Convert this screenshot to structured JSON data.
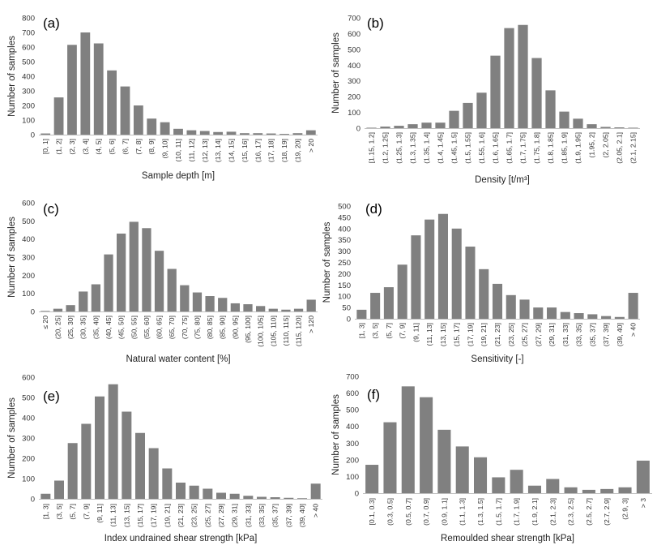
{
  "chart_data": [
    {
      "panel": "(a)",
      "type": "bar",
      "xlabel": "Sample depth [m]",
      "ylabel": "Number of samples",
      "ylim": [
        0,
        800
      ],
      "yticks": [
        0,
        100,
        200,
        300,
        400,
        500,
        600,
        700,
        800
      ],
      "categories": [
        "[0, 1]",
        "(1, 2]",
        "(2, 3]",
        "(3, 4]",
        "(4, 5]",
        "(5, 6]",
        "(6, 7]",
        "(7, 8]",
        "(8, 9]",
        "(9, 10]",
        "(10, 11]",
        "(11, 12]",
        "(12, 13]",
        "(13, 14]",
        "(14, 15]",
        "(15, 16]",
        "(16, 17]",
        "(17, 18]",
        "(18, 19]",
        "(19, 20]",
        "> 20"
      ],
      "values": [
        8,
        255,
        615,
        700,
        625,
        440,
        330,
        200,
        110,
        85,
        40,
        30,
        25,
        18,
        20,
        10,
        10,
        8,
        5,
        10,
        30
      ]
    },
    {
      "panel": "(b)",
      "type": "bar",
      "xlabel": "Density [t/m³]",
      "ylabel": "Number of samples",
      "ylim": [
        0,
        700
      ],
      "yticks": [
        0,
        100,
        200,
        300,
        400,
        500,
        600,
        700
      ],
      "categories": [
        "[1.15, 1.2]",
        "(1.2, 1.25]",
        "(1.25, 1.3]",
        "(1.3, 1.35]",
        "(1.35, 1.4]",
        "(1.4, 1.45]",
        "(1.45, 1.5]",
        "(1.5, 1.55]",
        "(1.55, 1.6]",
        "(1.6, 1.65]",
        "(1.65, 1.7]",
        "(1.7, 1.75]",
        "(1.75, 1.8]",
        "(1.8, 1.85]",
        "(1.85, 1.9]",
        "(1.9, 1.95]",
        "(1.95, 2]",
        "(2, 2.05]",
        "(2.05, 2.1]",
        "(2.1, 2.15]"
      ],
      "values": [
        3,
        10,
        15,
        25,
        35,
        35,
        110,
        160,
        225,
        460,
        635,
        655,
        445,
        240,
        105,
        60,
        25,
        8,
        5,
        3
      ]
    },
    {
      "panel": "(c)",
      "type": "bar",
      "xlabel": "Natural water content [%]",
      "ylabel": "Number of samples",
      "ylim": [
        0,
        600
      ],
      "yticks": [
        0,
        100,
        200,
        300,
        400,
        500,
        600
      ],
      "categories": [
        "≤ 20",
        "(20, 25]",
        "(25, 30]",
        "(30, 35]",
        "(35, 40]",
        "(40, 45]",
        "(45, 50]",
        "(50, 55]",
        "(55, 60]",
        "(60, 65]",
        "(65, 70]",
        "(70, 75]",
        "(75, 80]",
        "(80, 85]",
        "(85, 90]",
        "(90, 95]",
        "(95, 100]",
        "(100, 105]",
        "(105, 110]",
        "(110, 115]",
        "(115, 120]",
        "> 120"
      ],
      "values": [
        3,
        15,
        35,
        110,
        150,
        315,
        430,
        495,
        460,
        335,
        235,
        145,
        105,
        85,
        75,
        45,
        40,
        30,
        15,
        10,
        15,
        65
      ]
    },
    {
      "panel": "(d)",
      "type": "bar",
      "xlabel": "Sensitivity [-]",
      "ylabel": "Number of samples",
      "ylim": [
        0,
        500
      ],
      "yticks": [
        0,
        50,
        100,
        150,
        200,
        250,
        300,
        350,
        400,
        450,
        500
      ],
      "categories": [
        "[1, 3]",
        "(3, 5]",
        "(5, 7]",
        "(7, 9]",
        "(9, 11]",
        "(11, 13]",
        "(13, 15]",
        "(15, 17]",
        "(17, 19]",
        "(19, 21]",
        "(21, 23]",
        "(23, 25]",
        "(25, 27]",
        "(27, 29]",
        "(29, 31]",
        "(31, 33]",
        "(33, 35]",
        "(35, 37]",
        "(37, 39]",
        "(39, 40]",
        "> 40"
      ],
      "values": [
        40,
        115,
        140,
        240,
        370,
        440,
        465,
        400,
        320,
        220,
        155,
        105,
        85,
        50,
        50,
        30,
        25,
        20,
        12,
        8,
        115
      ]
    },
    {
      "panel": "(e)",
      "type": "bar",
      "xlabel": "Index undrained shear strength [kPa]",
      "ylabel": "Number of samples",
      "ylim": [
        0,
        600
      ],
      "yticks": [
        0,
        100,
        200,
        300,
        400,
        500,
        600
      ],
      "categories": [
        "[1, 3]",
        "(3, 5]",
        "(5, 7]",
        "(7, 9]",
        "(9, 11]",
        "(11, 13]",
        "(13, 15]",
        "(15, 17]",
        "(17, 19]",
        "(19, 21]",
        "(21, 23]",
        "(23, 25]",
        "(25, 27]",
        "(27, 29]",
        "(29, 31]",
        "(31, 33]",
        "(33, 35]",
        "(35, 37]",
        "(37, 39]",
        "(39, 40]",
        "> 40"
      ],
      "values": [
        25,
        90,
        275,
        370,
        505,
        565,
        430,
        325,
        250,
        150,
        80,
        65,
        50,
        30,
        25,
        15,
        10,
        8,
        5,
        3,
        75
      ]
    },
    {
      "panel": "(f)",
      "type": "bar",
      "xlabel": "Remoulded shear strength [kPa]",
      "ylabel": "Number of samples",
      "ylim": [
        0,
        700
      ],
      "yticks": [
        0,
        100,
        200,
        300,
        400,
        500,
        600,
        700
      ],
      "categories": [
        "[0.1, 0.3]",
        "(0.3, 0.5]",
        "(0.5, 0.7]",
        "(0.7, 0.9]",
        "(0.9, 1.1]",
        "(1.1, 1.3]",
        "(1.3, 1.5]",
        "(1.5, 1.7]",
        "(1.7, 1.9]",
        "(1.9, 2.1]",
        "(2.1, 2.3]",
        "(2.3, 2.5]",
        "(2.5, 2.7]",
        "(2.7, 2.9]",
        "(2.9, 3]",
        "> 3"
      ],
      "values": [
        170,
        425,
        640,
        575,
        380,
        280,
        215,
        95,
        140,
        45,
        85,
        35,
        20,
        25,
        35,
        195
      ]
    }
  ]
}
